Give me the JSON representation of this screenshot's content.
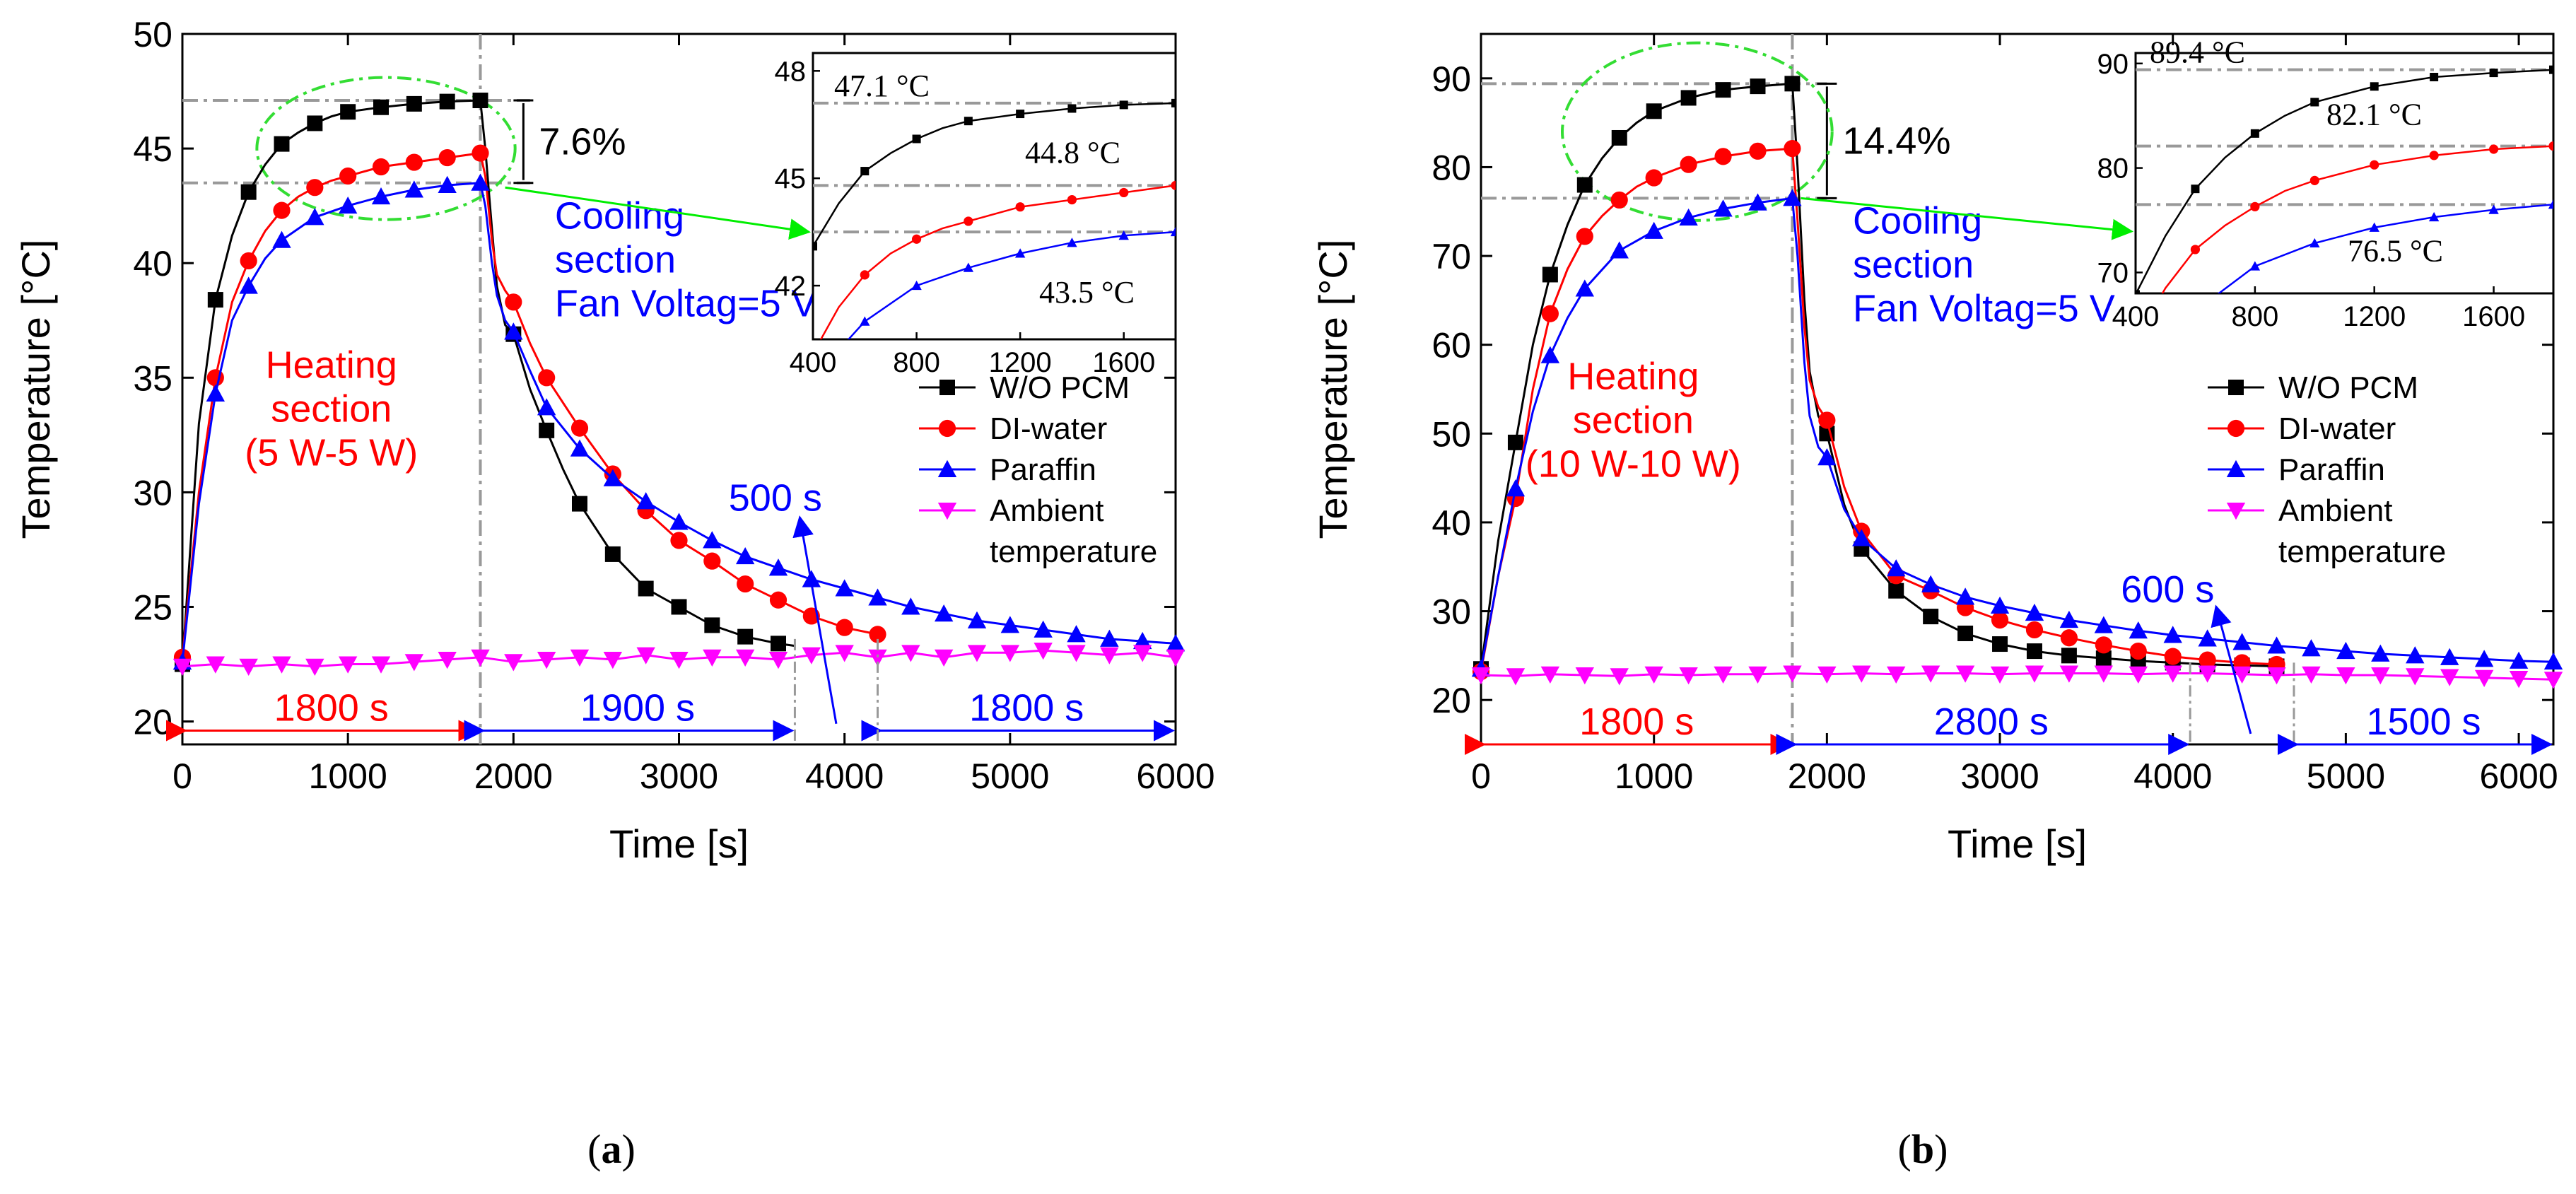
{
  "chart_data": [
    {
      "panel": "a",
      "caption_letter": "a",
      "type": "line",
      "xlabel": "Time [s]",
      "ylabel": "Temperature [°C]",
      "xlim": [
        0,
        6000
      ],
      "ylim": [
        19,
        50
      ],
      "xticks": [
        0,
        1000,
        2000,
        3000,
        4000,
        5000,
        6000
      ],
      "yticks": [
        20,
        25,
        30,
        35,
        40,
        45,
        50
      ],
      "legend": [
        "W/O PCM",
        "DI-water",
        "Paraffin",
        "Ambient",
        "temperature"
      ],
      "series": [
        {
          "name": "W/O PCM",
          "color": "#000000",
          "marker": "square",
          "x": [
            0,
            100,
            200,
            300,
            400,
            500,
            600,
            700,
            800,
            900,
            1000,
            1200,
            1400,
            1600,
            1800,
            1830,
            1870,
            1900,
            1950,
            2000,
            2100,
            2200,
            2300,
            2400,
            2600,
            2800,
            3000,
            3200,
            3400,
            3600,
            3700
          ],
          "y": [
            22.5,
            33.0,
            38.4,
            41.2,
            43.1,
            44.3,
            45.2,
            45.7,
            46.1,
            46.4,
            46.6,
            46.8,
            46.95,
            47.05,
            47.1,
            45.0,
            41.5,
            39.0,
            37.3,
            36.9,
            34.5,
            32.7,
            31.0,
            29.5,
            27.3,
            25.8,
            25.0,
            24.2,
            23.7,
            23.4,
            23.3
          ]
        },
        {
          "name": "DI-water",
          "color": "#ff0000",
          "marker": "circle",
          "x": [
            0,
            100,
            200,
            300,
            400,
            500,
            600,
            700,
            800,
            900,
            1000,
            1200,
            1400,
            1600,
            1800,
            1830,
            1870,
            1900,
            1950,
            2000,
            2100,
            2200,
            2400,
            2600,
            2800,
            3000,
            3200,
            3400,
            3600,
            3800,
            4000,
            4200
          ],
          "y": [
            22.8,
            30.0,
            35.0,
            38.3,
            40.1,
            41.4,
            42.3,
            42.9,
            43.3,
            43.6,
            43.8,
            44.2,
            44.4,
            44.6,
            44.8,
            43.8,
            41.0,
            39.5,
            38.8,
            38.3,
            36.5,
            35.0,
            32.8,
            30.8,
            29.2,
            27.9,
            27.0,
            26.0,
            25.3,
            24.6,
            24.1,
            23.8
          ]
        },
        {
          "name": "Paraffin",
          "color": "#0000ff",
          "marker": "triangle",
          "x": [
            0,
            100,
            200,
            300,
            400,
            500,
            600,
            800,
            1000,
            1200,
            1400,
            1600,
            1800,
            1830,
            1870,
            1900,
            1950,
            2000,
            2100,
            2200,
            2400,
            2600,
            2800,
            3000,
            3200,
            3400,
            3600,
            3800,
            4000,
            4200,
            4400,
            4600,
            4800,
            5000,
            5200,
            5400,
            5600,
            5800,
            6000
          ],
          "y": [
            22.6,
            29.5,
            34.3,
            37.5,
            39.0,
            40.2,
            41.0,
            42.0,
            42.5,
            42.9,
            43.2,
            43.4,
            43.5,
            42.5,
            40.0,
            38.6,
            37.5,
            37.0,
            35.3,
            33.7,
            31.9,
            30.6,
            29.6,
            28.7,
            27.9,
            27.2,
            26.7,
            26.2,
            25.8,
            25.4,
            25.0,
            24.7,
            24.4,
            24.2,
            24.0,
            23.8,
            23.6,
            23.5,
            23.4
          ]
        },
        {
          "name": "Ambient temperature",
          "color": "#ff00ff",
          "marker": "triangle-down",
          "x": [
            0,
            200,
            400,
            600,
            800,
            1000,
            1200,
            1400,
            1600,
            1800,
            2000,
            2200,
            2400,
            2600,
            2800,
            3000,
            3200,
            3400,
            3600,
            3800,
            4000,
            4200,
            4400,
            4600,
            4800,
            5000,
            5200,
            5400,
            5600,
            5800,
            6000
          ],
          "y": [
            22.4,
            22.5,
            22.4,
            22.5,
            22.4,
            22.5,
            22.5,
            22.6,
            22.7,
            22.8,
            22.6,
            22.7,
            22.8,
            22.7,
            22.9,
            22.7,
            22.8,
            22.8,
            22.7,
            22.9,
            23.0,
            22.8,
            23.0,
            22.8,
            23.0,
            23.0,
            23.1,
            23.0,
            22.9,
            23.0,
            22.8
          ]
        }
      ],
      "annotations": {
        "heating_label": [
          "Heating",
          "section",
          "(5 W-5 W)"
        ],
        "cooling_label": [
          "Cooling",
          "section",
          "Fan Voltag=5 V"
        ],
        "percent": "7.6%",
        "delay": "500 s",
        "spans": [
          "1800 s",
          "1900 s",
          "1800 s"
        ]
      },
      "inset": {
        "xlim": [
          400,
          1800
        ],
        "ylim": [
          40.5,
          48.5
        ],
        "xticks": [
          400,
          800,
          1200,
          1600
        ],
        "yticks": [
          42,
          45,
          48
        ],
        "labels": [
          "47.1 °C",
          "44.8 °C",
          "43.5 °C"
        ],
        "levels": [
          47.1,
          44.8,
          43.5
        ]
      }
    },
    {
      "panel": "b",
      "caption_letter": "b",
      "type": "line",
      "xlabel": "Time [s]",
      "ylabel": "Temperature [°C]",
      "xlim": [
        0,
        6200
      ],
      "ylim": [
        15,
        95
      ],
      "xticks": [
        0,
        1000,
        2000,
        3000,
        4000,
        5000,
        6000
      ],
      "yticks": [
        20,
        30,
        40,
        50,
        60,
        70,
        80,
        90
      ],
      "legend": [
        "W/O PCM",
        "DI-water",
        "Paraffin",
        "Ambient",
        "temperature"
      ],
      "series": [
        {
          "name": "W/O PCM",
          "color": "#000000",
          "marker": "square",
          "x": [
            0,
            100,
            200,
            300,
            400,
            500,
            600,
            700,
            800,
            900,
            1000,
            1200,
            1400,
            1600,
            1800,
            1830,
            1870,
            1900,
            1950,
            2000,
            2100,
            2200,
            2400,
            2600,
            2800,
            3000,
            3200,
            3400,
            3600,
            3800,
            4000,
            4200,
            4400,
            4600
          ],
          "y": [
            23.5,
            38.0,
            49.0,
            60.0,
            67.9,
            73.5,
            78.0,
            81.0,
            83.3,
            85.0,
            86.3,
            87.8,
            88.7,
            89.1,
            89.4,
            80.0,
            65.0,
            57.0,
            52.0,
            50.0,
            42.0,
            37.0,
            32.3,
            29.4,
            27.5,
            26.3,
            25.5,
            25.0,
            24.7,
            24.4,
            24.2,
            24.0,
            23.9,
            23.8
          ]
        },
        {
          "name": "DI-water",
          "color": "#ff0000",
          "marker": "circle",
          "x": [
            0,
            100,
            200,
            300,
            400,
            500,
            600,
            700,
            800,
            900,
            1000,
            1200,
            1400,
            1600,
            1800,
            1830,
            1870,
            1900,
            1950,
            2000,
            2100,
            2200,
            2400,
            2600,
            2800,
            3000,
            3200,
            3400,
            3600,
            3800,
            4000,
            4200,
            4400,
            4600
          ],
          "y": [
            23.2,
            34.0,
            42.7,
            55.0,
            63.5,
            68.5,
            72.2,
            74.5,
            76.3,
            77.8,
            78.8,
            80.3,
            81.2,
            81.8,
            82.1,
            74.0,
            62.0,
            56.0,
            53.0,
            51.5,
            44.0,
            39.0,
            34.0,
            32.3,
            30.4,
            29.0,
            27.9,
            27.0,
            26.2,
            25.5,
            24.9,
            24.5,
            24.2,
            24.0
          ]
        },
        {
          "name": "Paraffin",
          "color": "#0000ff",
          "marker": "triangle",
          "x": [
            0,
            100,
            200,
            300,
            400,
            500,
            600,
            800,
            1000,
            1200,
            1400,
            1600,
            1800,
            1830,
            1870,
            1900,
            1950,
            2000,
            2100,
            2200,
            2400,
            2600,
            2800,
            3000,
            3200,
            3400,
            3600,
            3800,
            4000,
            4200,
            4400,
            4600,
            4800,
            5000,
            5200,
            5400,
            5600,
            5800,
            6000,
            6200
          ],
          "y": [
            23.5,
            34.0,
            43.8,
            52.5,
            58.8,
            63.0,
            66.3,
            70.6,
            72.8,
            74.3,
            75.3,
            76.0,
            76.5,
            70.0,
            58.0,
            52.0,
            48.5,
            47.3,
            41.5,
            38.2,
            34.8,
            33.0,
            31.6,
            30.6,
            29.8,
            29.0,
            28.4,
            27.8,
            27.3,
            26.9,
            26.5,
            26.1,
            25.8,
            25.5,
            25.2,
            25.0,
            24.8,
            24.6,
            24.4,
            24.3
          ]
        },
        {
          "name": "Ambient temperature",
          "color": "#ff00ff",
          "marker": "triangle-down",
          "x": [
            0,
            200,
            400,
            600,
            800,
            1000,
            1200,
            1400,
            1600,
            1800,
            2000,
            2200,
            2400,
            2600,
            2800,
            3000,
            3200,
            3400,
            3600,
            3800,
            4000,
            4200,
            4400,
            4600,
            4800,
            5000,
            5200,
            5400,
            5600,
            5800,
            6000,
            6200
          ],
          "y": [
            22.8,
            22.7,
            22.9,
            22.8,
            22.7,
            22.9,
            22.8,
            22.9,
            22.9,
            23.0,
            22.9,
            23.0,
            22.9,
            23.0,
            23.0,
            22.9,
            23.0,
            23.0,
            23.0,
            22.9,
            23.0,
            23.0,
            22.9,
            22.8,
            22.9,
            22.8,
            22.8,
            22.7,
            22.6,
            22.5,
            22.4,
            22.3
          ]
        }
      ],
      "annotations": {
        "heating_label": [
          "Heating",
          "section",
          "(10 W-10 W)"
        ],
        "cooling_label": [
          "Cooling",
          "section",
          "Fan Voltag=5 V"
        ],
        "percent": "14.4%",
        "delay": "600 s",
        "spans": [
          "1800 s",
          "2800 s",
          "1500 s"
        ]
      },
      "inset": {
        "xlim": [
          400,
          1800
        ],
        "ylim": [
          68,
          91
        ],
        "xticks": [
          400,
          800,
          1200,
          1600
        ],
        "yticks": [
          70,
          80,
          90
        ],
        "labels": [
          "89.4 °C",
          "82.1 °C",
          "76.5 °C"
        ],
        "levels": [
          89.4,
          82.1,
          76.5
        ]
      }
    }
  ]
}
